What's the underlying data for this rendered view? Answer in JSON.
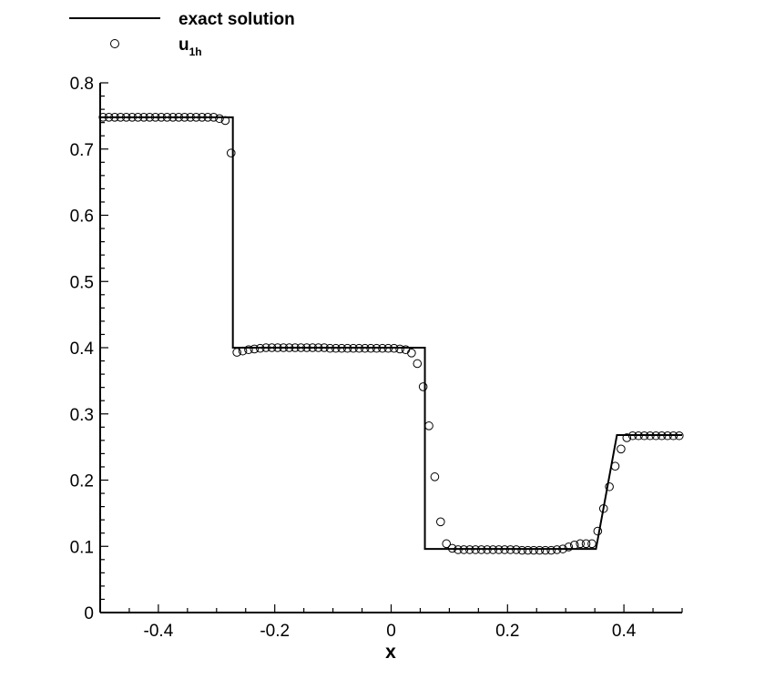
{
  "chart_data": {
    "type": "line",
    "xlabel": "x",
    "ylabel": "",
    "xlim": [
      -0.5,
      0.5
    ],
    "ylim": [
      0,
      0.8
    ],
    "x_ticks": [
      -0.4,
      -0.2,
      0,
      0.2,
      0.4
    ],
    "x_tick_labels": [
      "-0.4",
      "-0.2",
      "0",
      "0.2",
      "0.4"
    ],
    "y_ticks": [
      0,
      0.1,
      0.2,
      0.3,
      0.4,
      0.5,
      0.6,
      0.7,
      0.8
    ],
    "y_tick_labels": [
      "0",
      "0.1",
      "0.2",
      "0.3",
      "0.4",
      "0.5",
      "0.6",
      "0.7",
      "0.8"
    ],
    "grid": false,
    "legend_position": "top-left",
    "series": [
      {
        "name": "exact solution",
        "style": "line",
        "color": "#000000",
        "x": [
          -0.5,
          -0.272,
          -0.272,
          0.058,
          0.058,
          0.352,
          0.388,
          0.5
        ],
        "y": [
          0.748,
          0.748,
          0.4,
          0.4,
          0.096,
          0.096,
          0.268,
          0.268
        ]
      },
      {
        "name_main": "u",
        "name_sub": "1h",
        "style": "markers",
        "marker": "open-circle",
        "color": "#000000",
        "x": [
          -0.495,
          -0.485,
          -0.475,
          -0.465,
          -0.455,
          -0.445,
          -0.435,
          -0.425,
          -0.415,
          -0.405,
          -0.395,
          -0.385,
          -0.375,
          -0.365,
          -0.355,
          -0.345,
          -0.335,
          -0.325,
          -0.315,
          -0.305,
          -0.295,
          -0.285,
          -0.275,
          -0.265,
          -0.255,
          -0.245,
          -0.235,
          -0.225,
          -0.215,
          -0.205,
          -0.195,
          -0.185,
          -0.175,
          -0.165,
          -0.155,
          -0.145,
          -0.135,
          -0.125,
          -0.115,
          -0.105,
          -0.095,
          -0.085,
          -0.075,
          -0.065,
          -0.055,
          -0.045,
          -0.035,
          -0.025,
          -0.015,
          -0.005,
          0.005,
          0.015,
          0.025,
          0.035,
          0.045,
          0.055,
          0.065,
          0.075,
          0.085,
          0.095,
          0.105,
          0.115,
          0.125,
          0.135,
          0.145,
          0.155,
          0.165,
          0.175,
          0.185,
          0.195,
          0.205,
          0.215,
          0.225,
          0.235,
          0.245,
          0.255,
          0.265,
          0.275,
          0.285,
          0.295,
          0.305,
          0.315,
          0.325,
          0.335,
          0.345,
          0.355,
          0.365,
          0.375,
          0.385,
          0.395,
          0.405,
          0.415,
          0.425,
          0.435,
          0.445,
          0.455,
          0.465,
          0.475,
          0.485,
          0.495
        ],
        "y": [
          0.748,
          0.748,
          0.748,
          0.748,
          0.748,
          0.748,
          0.748,
          0.748,
          0.748,
          0.748,
          0.748,
          0.748,
          0.748,
          0.748,
          0.748,
          0.748,
          0.748,
          0.748,
          0.748,
          0.748,
          0.746,
          0.743,
          0.694,
          0.393,
          0.395,
          0.397,
          0.398,
          0.399,
          0.4,
          0.4,
          0.4,
          0.4,
          0.4,
          0.4,
          0.4,
          0.4,
          0.4,
          0.4,
          0.4,
          0.399,
          0.399,
          0.399,
          0.399,
          0.399,
          0.399,
          0.399,
          0.399,
          0.399,
          0.399,
          0.399,
          0.399,
          0.398,
          0.397,
          0.392,
          0.376,
          0.341,
          0.282,
          0.205,
          0.137,
          0.104,
          0.097,
          0.095,
          0.095,
          0.095,
          0.095,
          0.095,
          0.095,
          0.095,
          0.095,
          0.095,
          0.095,
          0.095,
          0.094,
          0.094,
          0.094,
          0.094,
          0.094,
          0.094,
          0.095,
          0.096,
          0.099,
          0.102,
          0.104,
          0.104,
          0.104,
          0.123,
          0.157,
          0.19,
          0.221,
          0.247,
          0.264,
          0.267,
          0.267,
          0.267,
          0.267,
          0.267,
          0.267,
          0.267,
          0.267,
          0.267
        ]
      }
    ]
  }
}
